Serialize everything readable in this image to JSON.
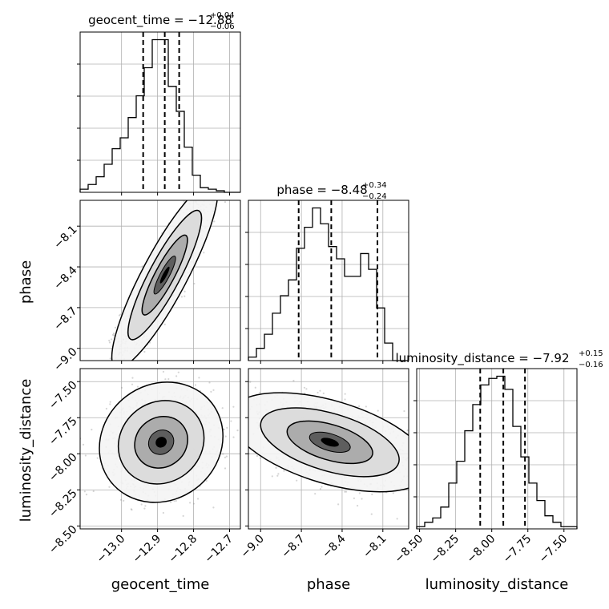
{
  "chart_data": {
    "type": "corner",
    "parameters": [
      "geocent_time",
      "phase",
      "luminosity_distance"
    ],
    "titles": [
      {
        "name": "geocent_time",
        "value": "−12.88",
        "plus": "+0.04",
        "minus": "−0.06"
      },
      {
        "name": "phase",
        "value": "−8.48",
        "plus": "+0.34",
        "minus": "−0.24"
      },
      {
        "name": "luminosity_distance",
        "value": "−7.92",
        "plus": "+0.15",
        "minus": "−0.16"
      }
    ],
    "axis_ranges": {
      "geocent_time": [
        -13.115,
        -12.67
      ],
      "phase": [
        -9.09,
        -7.91
      ],
      "luminosity_distance": [
        -8.52,
        -7.41
      ]
    },
    "ticks": {
      "geocent_time": {
        "values": [
          -13.0,
          -12.9,
          -12.8,
          -12.7
        ],
        "labels": [
          "−13.0",
          "−12.9",
          "−12.8",
          "−12.7"
        ]
      },
      "phase": {
        "values": [
          -9.0,
          -8.7,
          -8.4,
          -8.1
        ],
        "labels": [
          "−9.0",
          "−8.7",
          "−8.4",
          "−8.1"
        ]
      },
      "luminosity_distance": {
        "values": [
          -8.5,
          -8.25,
          -8.0,
          -7.75,
          -7.5
        ],
        "labels": [
          "−8.50",
          "−8.25",
          "−8.00",
          "−7.75",
          "−7.50"
        ]
      }
    },
    "quantiles": {
      "geocent_time": [
        -12.94,
        -12.88,
        -12.84
      ],
      "phase": [
        -8.72,
        -8.48,
        -8.14
      ],
      "luminosity_distance": [
        -8.08,
        -7.92,
        -7.77
      ]
    },
    "histograms": {
      "geocent_time": {
        "range": [
          -13.115,
          -12.67
        ],
        "counts": [
          0.2,
          0.5,
          1.0,
          1.8,
          2.8,
          3.5,
          4.8,
          6.2,
          8.0,
          9.8,
          9.8,
          6.8,
          5.2,
          2.9,
          1.1,
          0.3,
          0.2,
          0.1,
          0,
          0
        ]
      },
      "phase": {
        "range": [
          -9.09,
          -7.91
        ],
        "counts": [
          0.2,
          0.7,
          1.5,
          2.7,
          3.7,
          4.6,
          6.4,
          7.6,
          8.7,
          7.8,
          6.5,
          5.8,
          4.8,
          4.8,
          6.1,
          5.2,
          3.0,
          1.0,
          0,
          0
        ]
      },
      "luminosity_distance": {
        "range": [
          -8.52,
          -7.41
        ],
        "counts": [
          0.1,
          0.3,
          0.5,
          1.0,
          2.1,
          3.1,
          4.5,
          5.7,
          6.6,
          6.9,
          7.0,
          6.4,
          4.7,
          3.3,
          2.1,
          1.3,
          0.6,
          0.3,
          0.1,
          0.1
        ]
      }
    },
    "pair_means": [
      {
        "x": "geocent_time",
        "y": "phase",
        "mean": [
          -12.88,
          -8.46
        ],
        "sd": [
          0.06,
          0.28
        ],
        "corr": 0.88
      },
      {
        "x": "geocent_time",
        "y": "luminosity_distance",
        "mean": [
          -12.89,
          -7.92
        ],
        "sd": [
          0.07,
          0.17
        ],
        "corr": 0.1
      },
      {
        "x": "phase",
        "y": "luminosity_distance",
        "mean": [
          -8.49,
          -7.92
        ],
        "sd": [
          0.3,
          0.14
        ],
        "corr": -0.5
      }
    ],
    "grid": true,
    "colors": {
      "line": "#000000",
      "points": "#888888",
      "grid": "#b0b0b0",
      "quantile": "#000000"
    }
  }
}
